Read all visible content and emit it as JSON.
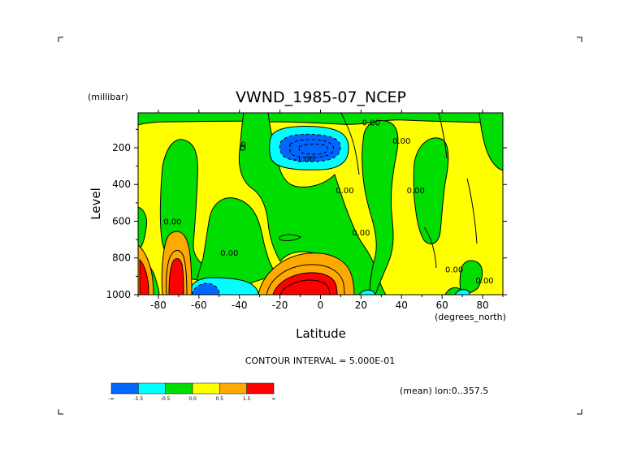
{
  "chart_data": {
    "type": "heatmap",
    "title": "VWND_1985-07_NCEP",
    "xlabel": "Latitude",
    "ylabel": "Level",
    "x_units": "(degrees_north)",
    "y_units": "(millibar)",
    "xlim": [
      -90,
      90
    ],
    "ylim": [
      1000,
      10
    ],
    "x_ticks": [
      -80,
      -60,
      -40,
      -20,
      0,
      20,
      40,
      60,
      80
    ],
    "y_ticks": [
      200,
      400,
      600,
      800,
      1000
    ],
    "colorbar": {
      "bins": [
        {
          "range": "< -1.5",
          "color": "#0066ff"
        },
        {
          "range": "-1.5 to -0.5",
          "color": "#00ffff"
        },
        {
          "range": "-0.5 to 0.0",
          "color": "#00dd00"
        },
        {
          "range": "0.0 to 0.5",
          "color": "#ffff00"
        },
        {
          "range": "0.5 to 1.5",
          "color": "#ffaa00"
        },
        {
          "range": "> 1.5",
          "color": "#ff0000"
        }
      ],
      "labels": [
        "-∞",
        "-1.5",
        "-0.5",
        "0.0",
        "0.5",
        "1.5",
        "∞"
      ]
    },
    "contour_labels": [
      {
        "text": "0.00",
        "x": 25,
        "y": 60
      },
      {
        "text": "-1.00",
        "x": -8,
        "y": 260
      },
      {
        "text": "0.00",
        "x": 40,
        "y": 160
      },
      {
        "text": "0.00",
        "x": 12,
        "y": 430
      },
      {
        "text": "0.00",
        "x": 47,
        "y": 430
      },
      {
        "text": "0.00",
        "x": -73,
        "y": 600
      },
      {
        "text": "0.00",
        "x": 20,
        "y": 660
      },
      {
        "text": "0.00",
        "x": -45,
        "y": 770
      },
      {
        "text": "0.00",
        "x": 66,
        "y": 860
      },
      {
        "text": "0.00",
        "x": 81,
        "y": 920
      },
      {
        "text": "0",
        "x": -38,
        "y": 180
      }
    ],
    "regions": [
      {
        "value": -2.0,
        "desc": "core",
        "lat": [
          -16,
          2
        ],
        "lev": [
          110,
          260
        ]
      },
      {
        "value": -1.0,
        "desc": "cyan ring",
        "lat": [
          -22,
          5
        ],
        "lev": [
          80,
          300
        ]
      },
      {
        "value": 2.0,
        "desc": "low-level red",
        "lat": [
          -20,
          8
        ],
        "lev": [
          870,
          1000
        ]
      },
      {
        "value": 2.0,
        "desc": "red tongue",
        "lat": [
          -78,
          -70
        ],
        "lev": [
          740,
          1000
        ]
      },
      {
        "value": -2.0,
        "desc": "blue patch",
        "lat": [
          -65,
          -55
        ],
        "lev": [
          930,
          1000
        ]
      }
    ]
  },
  "header": {
    "title": "VWND_1985-07_NCEP",
    "y_units": "(millibar)"
  },
  "footer": {
    "contour_interval": "CONTOUR INTERVAL = 5.000E-01",
    "mean_info": "(mean) lon:0..357.5"
  }
}
